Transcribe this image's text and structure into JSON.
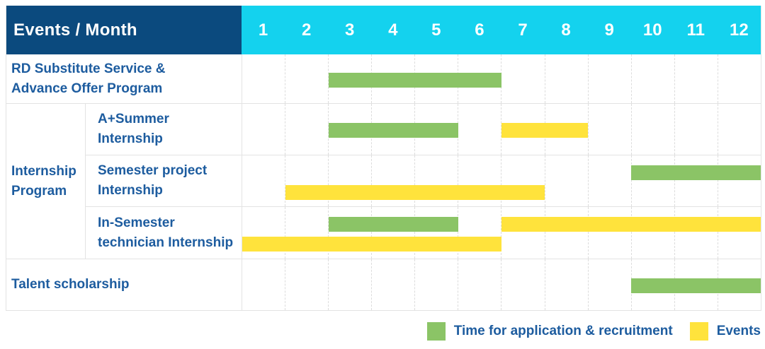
{
  "table": {
    "header_label": "Events / Month"
  },
  "colors": {
    "navy": "#0B4A7E",
    "cyan": "#14D2EE",
    "green": "#8BC466",
    "yellow": "#FFE33C",
    "label-text": "#1D5C9F",
    "grid": "#E3E3E3",
    "grid-dash": "#DCDCDC",
    "header-text": "#FFFFFF"
  },
  "chart_data": {
    "type": "bar",
    "subtype": "gantt",
    "x": [
      1,
      2,
      3,
      4,
      5,
      6,
      7,
      8,
      9,
      10,
      11,
      12
    ],
    "x_axis_label": "Month",
    "grid": true,
    "legend_position": "bottom-right",
    "legend": [
      {
        "key": "application",
        "label": "Time for application & recruitment",
        "color": "#8BC466"
      },
      {
        "key": "events",
        "label": "Events",
        "color": "#FFE33C"
      }
    ],
    "tasks": [
      {
        "label_lines": [
          "RD Substitute Service &",
          "Advance Offer Program"
        ],
        "group": null,
        "bars": [
          {
            "series": "application",
            "start_month": 3,
            "end_month": 6,
            "lane": "single"
          }
        ]
      },
      {
        "label_lines": [
          "A+Summer",
          "Internship"
        ],
        "group": [
          "Internship",
          "Program"
        ],
        "bars": [
          {
            "series": "application",
            "start_month": 3,
            "end_month": 5,
            "lane": "single"
          },
          {
            "series": "events",
            "start_month": 7,
            "end_month": 8,
            "lane": "single"
          }
        ]
      },
      {
        "label_lines": [
          "Semester project",
          "Internship"
        ],
        "group": [
          "Internship",
          "Program"
        ],
        "bars": [
          {
            "series": "application",
            "start_month": 10,
            "end_month": 12,
            "lane": "top"
          },
          {
            "series": "events",
            "start_month": 2,
            "end_month": 7,
            "lane": "bottom"
          }
        ]
      },
      {
        "label_lines": [
          "In-Semester",
          "technician Internship"
        ],
        "group": [
          "Internship",
          "Program"
        ],
        "bars": [
          {
            "series": "application",
            "start_month": 3,
            "end_month": 5,
            "lane": "top"
          },
          {
            "series": "events",
            "start_month": 7,
            "end_month": 12,
            "lane": "top"
          },
          {
            "series": "events",
            "start_month": 1,
            "end_month": 6,
            "lane": "bottom"
          }
        ]
      },
      {
        "label_lines": [
          "Talent scholarship"
        ],
        "group": null,
        "bars": [
          {
            "series": "application",
            "start_month": 10,
            "end_month": 12,
            "lane": "single"
          }
        ]
      }
    ]
  }
}
